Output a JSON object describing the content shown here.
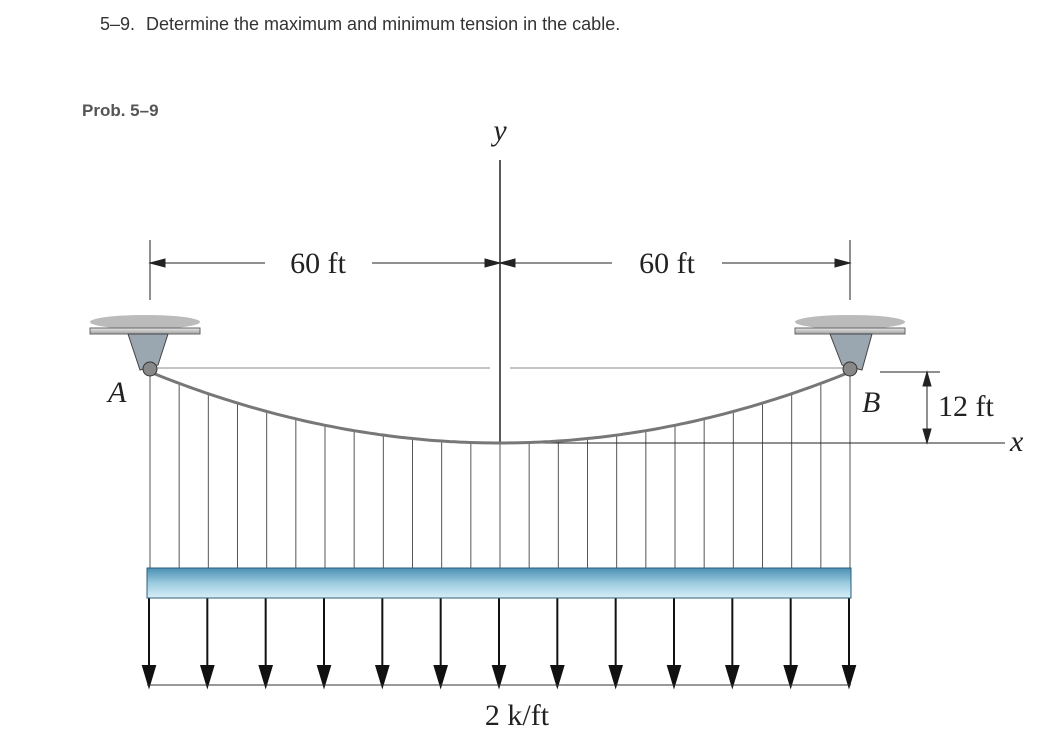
{
  "question": {
    "number": "5–9.",
    "text": "Determine the maximum and minimum tension in the cable."
  },
  "figure": {
    "caption": "Prob. 5–9",
    "labels": {
      "y_axis": "y",
      "left_span": "60 ft",
      "right_span": "60 ft",
      "support_a": "A",
      "support_b": "B",
      "sag": "12 ft",
      "x_axis": "x",
      "load": "2 k/ft"
    }
  }
}
